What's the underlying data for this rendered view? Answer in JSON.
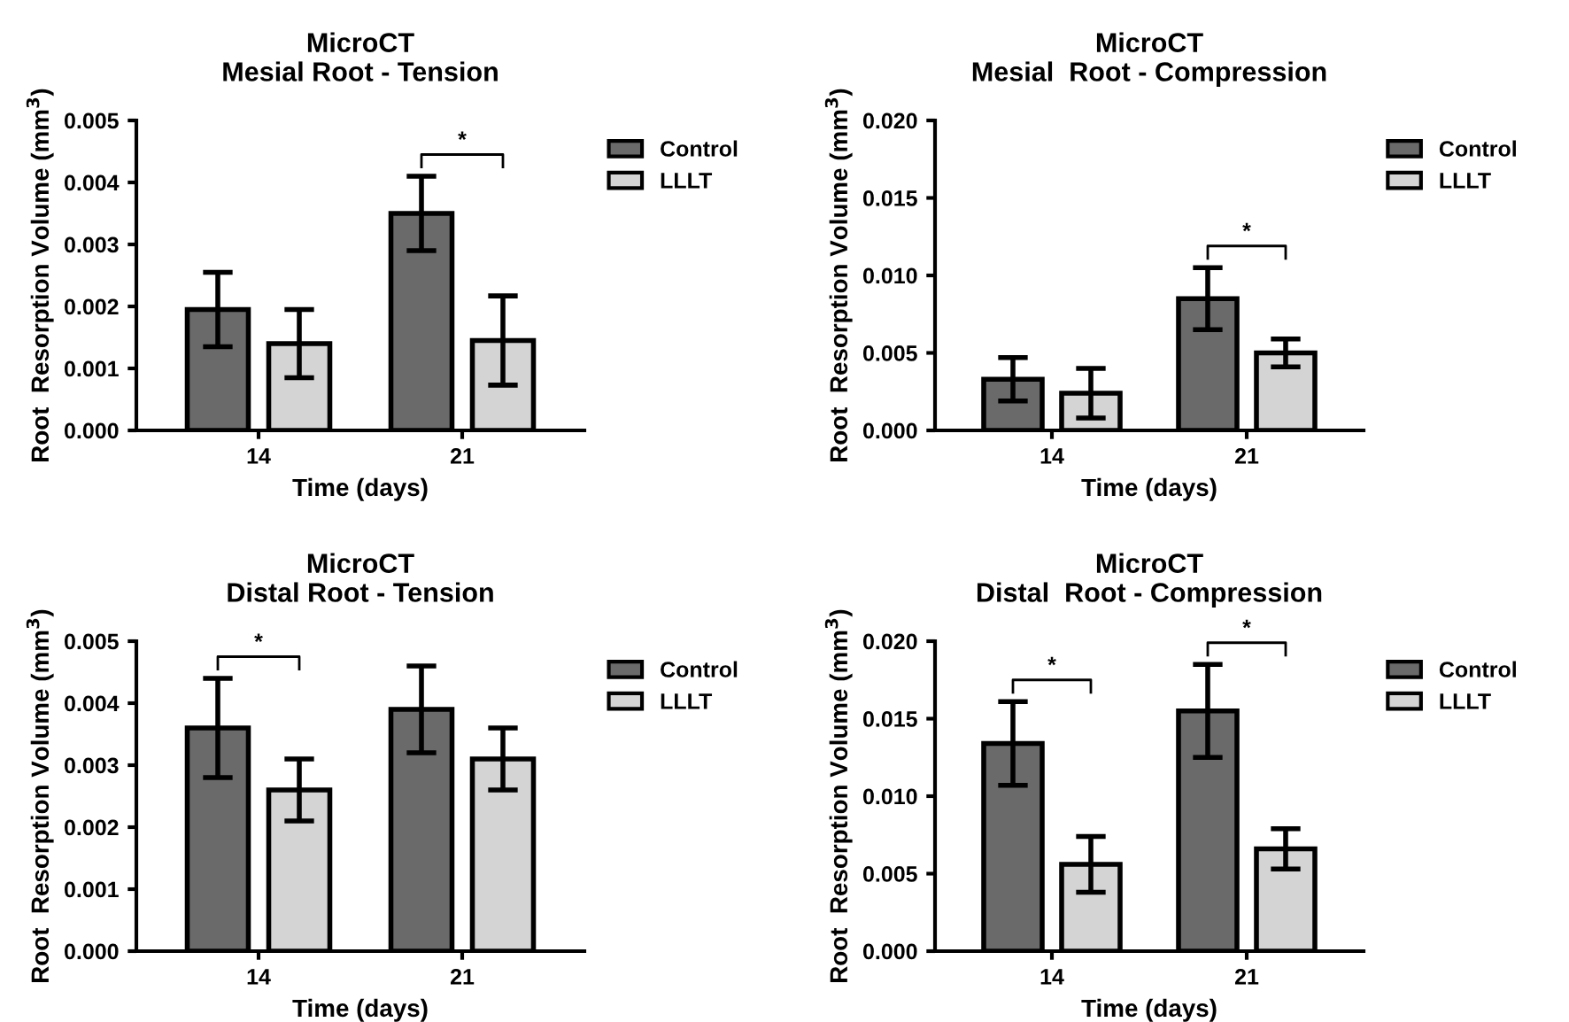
{
  "chart_data": [
    {
      "type": "bar",
      "title": "MicroCT\nMesial Root - Tension",
      "xlabel": "Time (days)",
      "ylabel": "Root  Resorption Volume (mm$^{3}$)",
      "categories": [
        "14",
        "21"
      ],
      "series": [
        {
          "name": "Control",
          "color": "#6a6a6a",
          "values": [
            0.00195,
            0.0035
          ],
          "errors": [
            0.0006,
            0.0006
          ]
        },
        {
          "name": "LLLT",
          "color": "#d4d4d4",
          "values": [
            0.0014,
            0.00145
          ],
          "errors": [
            0.00055,
            0.00072
          ]
        }
      ],
      "ylim": [
        0,
        0.005
      ],
      "yticks": [
        {
          "value": 0,
          "label": "0.000"
        },
        {
          "value": 0.001,
          "label": "0.001"
        },
        {
          "value": 0.002,
          "label": "0.002"
        },
        {
          "value": 0.003,
          "label": "0.003"
        },
        {
          "value": 0.004,
          "label": "0.004"
        },
        {
          "value": 0.005,
          "label": "0.005"
        }
      ],
      "annotations": [
        "*"
      ],
      "legend": "right",
      "grid": false
    },
    {
      "type": "bar",
      "title": "MicroCT\nMesial  Root - Compression",
      "xlabel": "Time (days)",
      "ylabel": "Root  Resorption Volume (mm$^{3}$)",
      "categories": [
        "14",
        "21"
      ],
      "series": [
        {
          "name": "Control",
          "color": "#6a6a6a",
          "values": [
            0.0033,
            0.0085
          ],
          "errors": [
            0.0014,
            0.002
          ]
        },
        {
          "name": "LLLT",
          "color": "#d4d4d4",
          "values": [
            0.0024,
            0.005
          ],
          "errors": [
            0.0016,
            0.0009
          ]
        }
      ],
      "ylim": [
        0,
        0.02
      ],
      "yticks": [
        {
          "value": 0,
          "label": "0.000"
        },
        {
          "value": 0.005,
          "label": "0.005"
        },
        {
          "value": 0.01,
          "label": "0.010"
        },
        {
          "value": 0.015,
          "label": "0.015"
        },
        {
          "value": 0.02,
          "label": "0.020"
        }
      ],
      "annotations": [
        "*"
      ],
      "legend": "right",
      "grid": false
    },
    {
      "type": "bar",
      "title": "MicroCT\nDistal Root - Tension",
      "xlabel": "Time (days)",
      "ylabel": "Root  Resorption Volume (mm$^{3}$)",
      "categories": [
        "14",
        "21"
      ],
      "series": [
        {
          "name": "Control",
          "color": "#6a6a6a",
          "values": [
            0.0036,
            0.0039
          ],
          "errors": [
            0.0008,
            0.0007
          ]
        },
        {
          "name": "LLLT",
          "color": "#d4d4d4",
          "values": [
            0.0026,
            0.0031
          ],
          "errors": [
            0.0005,
            0.0005
          ]
        }
      ],
      "ylim": [
        0,
        0.005
      ],
      "yticks": [
        {
          "value": 0,
          "label": "0.000"
        },
        {
          "value": 0.001,
          "label": "0.001"
        },
        {
          "value": 0.002,
          "label": "0.002"
        },
        {
          "value": 0.003,
          "label": "0.003"
        },
        {
          "value": 0.004,
          "label": "0.004"
        },
        {
          "value": 0.005,
          "label": "0.005"
        }
      ],
      "annotations": [
        "*"
      ],
      "legend": "right",
      "grid": false
    },
    {
      "type": "bar",
      "title": "MicroCT\nDistal  Root - Compression",
      "xlabel": "Time (days)",
      "ylabel": "Root  Resorption Volume (mm$^{3}$)",
      "categories": [
        "14",
        "21"
      ],
      "series": [
        {
          "name": "Control",
          "color": "#6a6a6a",
          "values": [
            0.0134,
            0.0155
          ],
          "errors": [
            0.0027,
            0.003
          ]
        },
        {
          "name": "LLLT",
          "color": "#d4d4d4",
          "values": [
            0.0056,
            0.0066
          ],
          "errors": [
            0.0018,
            0.0013
          ]
        }
      ],
      "ylim": [
        0,
        0.02
      ],
      "yticks": [
        {
          "value": 0,
          "label": "0.000"
        },
        {
          "value": 0.005,
          "label": "0.005"
        },
        {
          "value": 0.01,
          "label": "0.010"
        },
        {
          "value": 0.015,
          "label": "0.015"
        },
        {
          "value": 0.02,
          "label": "0.020"
        }
      ],
      "annotations": [
        "*",
        "*"
      ],
      "legend": "right",
      "grid": false
    }
  ]
}
